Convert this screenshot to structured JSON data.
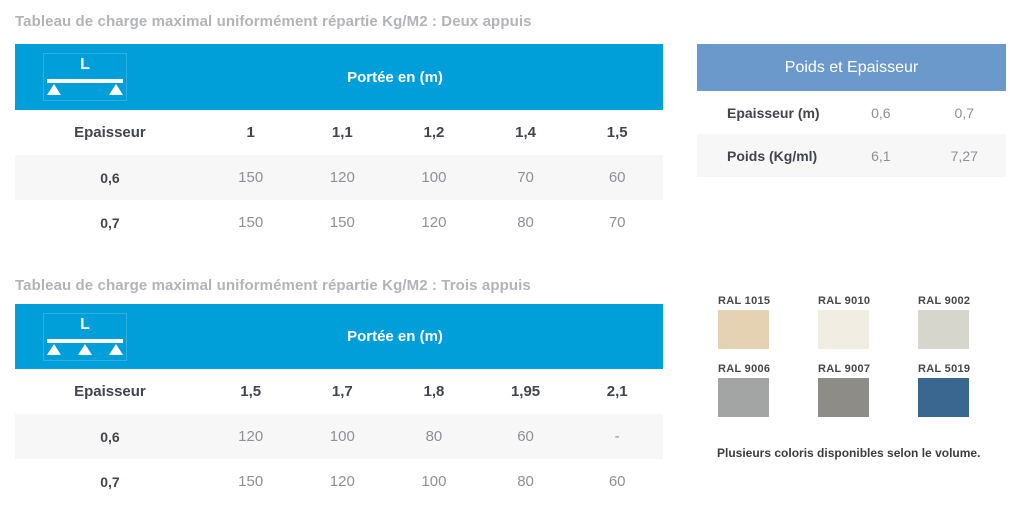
{
  "colors": {
    "table_header_cyan": "#009fd9",
    "poids_header_blue": "#6c99cc",
    "alt_row_bg": "#f7f7f7",
    "title_gray": "#b1b4b8",
    "text_dark": "#41454e",
    "text_value_gray": "#8b909a"
  },
  "table_deux": {
    "title": "Tableau de charge maximal uniformément répartie Kg/M2 : Deux appuis",
    "beam_label": "L",
    "header": "Portée en (m)",
    "columns": [
      "Epaisseur",
      "1",
      "1,1",
      "1,2",
      "1,4",
      "1,5"
    ],
    "rows": [
      [
        "0,6",
        "150",
        "120",
        "100",
        "70",
        "60"
      ],
      [
        "0,7",
        "150",
        "150",
        "120",
        "80",
        "70"
      ]
    ]
  },
  "table_trois": {
    "title": "Tableau de charge maximal uniformément répartie Kg/M2 : Trois appuis",
    "beam_label": "L",
    "header": "Portée en (m)",
    "columns": [
      "Epaisseur",
      "1,5",
      "1,7",
      "1,8",
      "1,95",
      "2,1"
    ],
    "rows": [
      [
        "0,6",
        "120",
        "100",
        "80",
        "60",
        "-"
      ],
      [
        "0,7",
        "150",
        "120",
        "100",
        "80",
        "60"
      ]
    ]
  },
  "poids": {
    "title": "Poids et Epaisseur",
    "rows": [
      [
        "Epaisseur (m)",
        "0,6",
        "0,7"
      ],
      [
        "Poids (Kg/ml)",
        "6,1",
        "7,27"
      ]
    ]
  },
  "ral": {
    "swatches": [
      {
        "label": "RAL 1015",
        "color": "#e5d2b2"
      },
      {
        "label": "RAL 9010",
        "color": "#f1ede2"
      },
      {
        "label": "RAL 9002",
        "color": "#d7d6cd"
      },
      {
        "label": "RAL 9006",
        "color": "#a3a5a5"
      },
      {
        "label": "RAL 9007",
        "color": "#8e8c87"
      },
      {
        "label": "RAL 5019",
        "color": "#3a678f"
      }
    ],
    "caption": "Plusieurs coloris disponibles selon le volume."
  }
}
